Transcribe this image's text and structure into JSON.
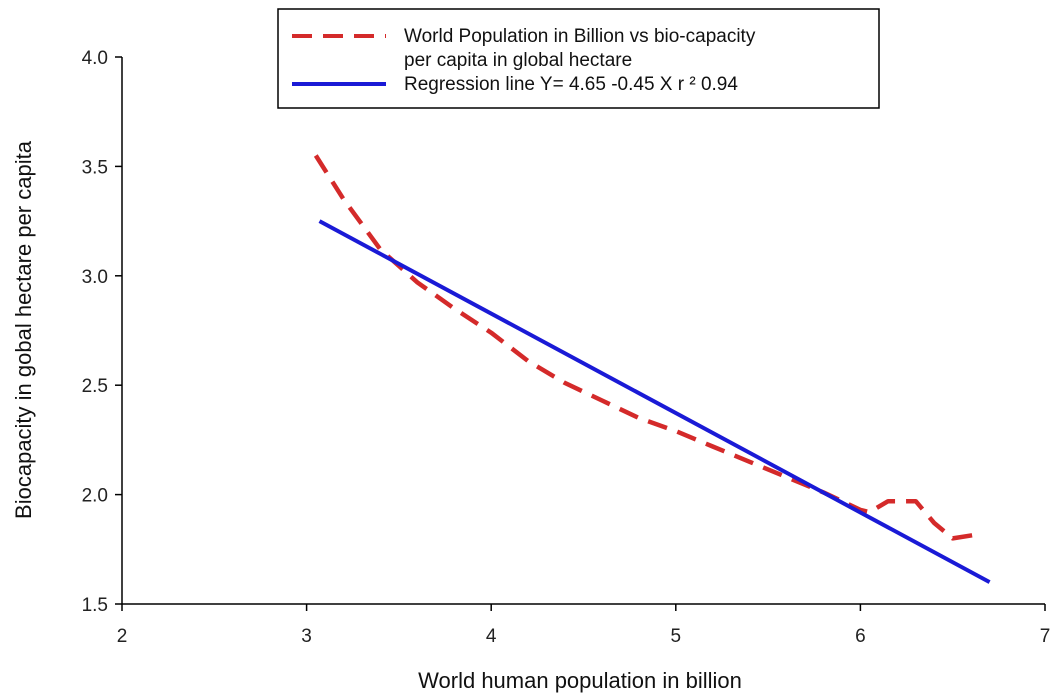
{
  "chart_data": {
    "type": "line",
    "xlabel": "World human population in billion",
    "ylabel": "Biocapacity in gobal hectare per capita",
    "xlim": [
      2,
      7
    ],
    "ylim": [
      1.5,
      4.0
    ],
    "x_ticks": [
      "2",
      "3",
      "4",
      "5",
      "6",
      "7"
    ],
    "y_ticks": [
      "1.5",
      "2.0",
      "2.5",
      "3.0",
      "3.5",
      "4.0"
    ],
    "grid": false,
    "legend_position": "top-center",
    "series": [
      {
        "name_line1": "World Population in Billion vs bio-capacity",
        "name_line2": "per capita in global hectare",
        "style": "dashed",
        "color": "#d42a2a",
        "x": [
          3.05,
          3.2,
          3.4,
          3.6,
          3.8,
          4.0,
          4.2,
          4.4,
          4.6,
          4.8,
          5.0,
          5.2,
          5.4,
          5.6,
          5.8,
          6.0,
          6.05,
          6.15,
          6.3,
          6.4,
          6.5,
          6.65
        ],
        "y": [
          3.55,
          3.35,
          3.12,
          2.97,
          2.85,
          2.74,
          2.61,
          2.51,
          2.43,
          2.35,
          2.29,
          2.22,
          2.15,
          2.08,
          2.01,
          1.93,
          1.92,
          1.97,
          1.97,
          1.87,
          1.8,
          1.82
        ]
      },
      {
        "name": "Regression line Y= 4.65 -0.45 X r ²   0.94",
        "style": "solid",
        "color": "#1a1ad6",
        "x": [
          3.07,
          6.7
        ],
        "y": [
          3.25,
          1.6
        ]
      }
    ]
  }
}
